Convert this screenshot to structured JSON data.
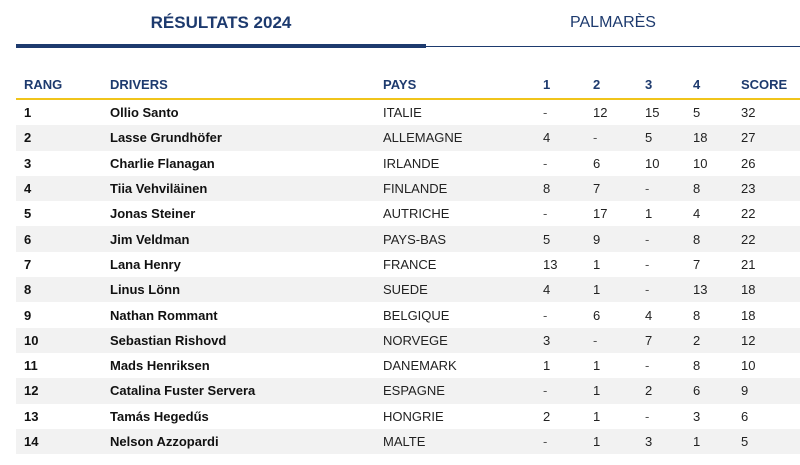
{
  "tabs": {
    "active_label": "RÉSULTATS 2024",
    "inactive_label": "PALMARÈS"
  },
  "table": {
    "headers": [
      "RANG",
      "DRIVERS",
      "PAYS",
      "1",
      "2",
      "3",
      "4",
      "SCORE"
    ],
    "rows": [
      [
        "1",
        "Ollio Santo",
        "ITALIE",
        "-",
        "12",
        "15",
        "5",
        "32"
      ],
      [
        "2",
        "Lasse Grundhöfer",
        "ALLEMAGNE",
        "4",
        "-",
        "5",
        "18",
        "27"
      ],
      [
        "3",
        "Charlie Flanagan",
        "IRLANDE",
        "-",
        "6",
        "10",
        "10",
        "26"
      ],
      [
        "4",
        "Tiia Vehviläinen",
        "FINLANDE",
        "8",
        "7",
        "-",
        "8",
        "23"
      ],
      [
        "5",
        "Jonas Steiner",
        "AUTRICHE",
        "-",
        "17",
        "1",
        "4",
        "22"
      ],
      [
        "6",
        "Jim Veldman",
        "PAYS-BAS",
        "5",
        "9",
        "-",
        "8",
        "22"
      ],
      [
        "7",
        "Lana Henry",
        "FRANCE",
        "13",
        "1",
        "-",
        "7",
        "21"
      ],
      [
        "8",
        "Linus Lönn",
        "SUEDE",
        "4",
        "1",
        "-",
        "13",
        "18"
      ],
      [
        "9",
        "Nathan Rommant",
        "BELGIQUE",
        "-",
        "6",
        "4",
        "8",
        "18"
      ],
      [
        "10",
        "Sebastian Rishovd",
        "NORVEGE",
        "3",
        "-",
        "7",
        "2",
        "12"
      ],
      [
        "11",
        "Mads Henriksen",
        "DANEMARK",
        "1",
        "1",
        "-",
        "8",
        "10"
      ],
      [
        "12",
        "Catalina Fuster Servera",
        "ESPAGNE",
        "-",
        "1",
        "2",
        "6",
        "9"
      ],
      [
        "13",
        "Tamás Hegedűs",
        "HONGRIE",
        "2",
        "1",
        "-",
        "3",
        "6"
      ],
      [
        "14",
        "Nelson Azzopardi",
        "MALTE",
        "-",
        "1",
        "3",
        "1",
        "5"
      ]
    ]
  },
  "colors": {
    "brand_navy": "#1d3a6e",
    "accent_yellow": "#f0c41b",
    "row_stripe": "#f2f2f2"
  }
}
